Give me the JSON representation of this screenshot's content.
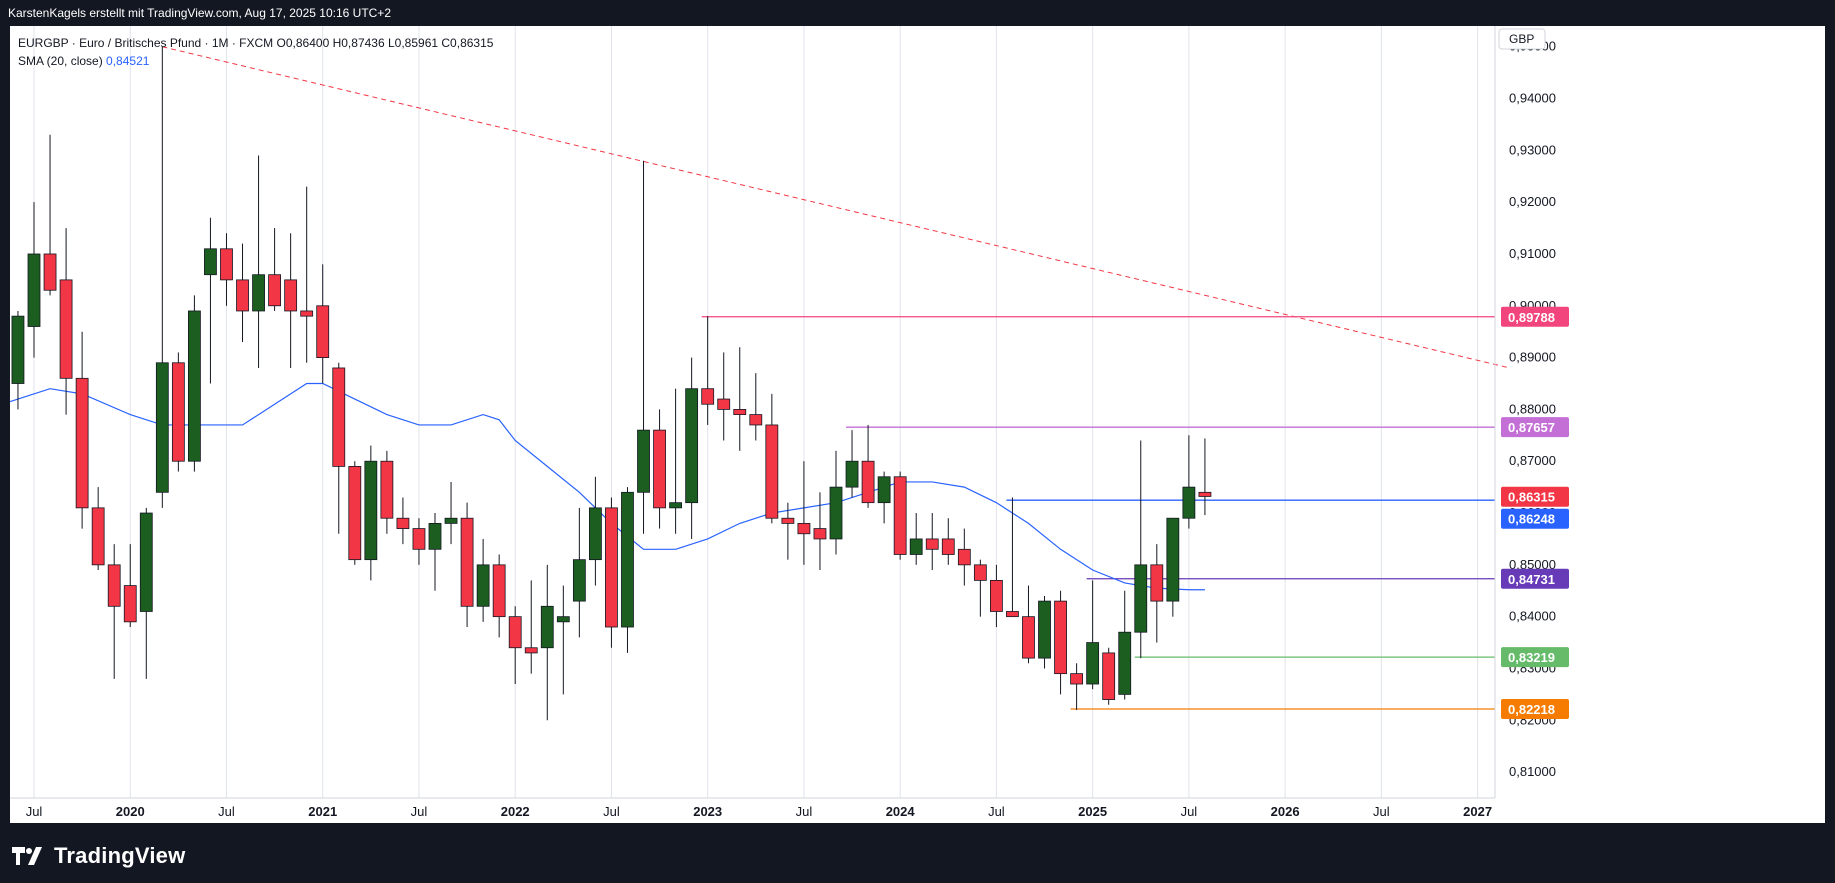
{
  "header": {
    "attribution": "KarstenKagels erstellt mit TradingView.com, Aug 17, 2025 10:16 UTC+2"
  },
  "legend": {
    "symbol_line": "EURGBP · Euro / Britisches Pfund · 1M · FXCM",
    "ohlc": {
      "o": "O0,86400",
      "h": "H0,87436",
      "l": "L0,85961",
      "c": "C0,86315"
    },
    "sma_label": "SMA (20, close)",
    "sma_value": "0,84521"
  },
  "footer": {
    "brand": "TradingView"
  },
  "colors": {
    "up": "#1b5e20",
    "down": "#f23645",
    "sma": "#2962ff",
    "trend": "#f23645",
    "grid": "#e0e3eb"
  },
  "chart_data": {
    "type": "candlestick",
    "currency": "GBP",
    "ylim": [
      0.805,
      0.954
    ],
    "y_ticks": [
      {
        "v": 0.95,
        "label": "0,95000"
      },
      {
        "v": 0.94,
        "label": "0,94000"
      },
      {
        "v": 0.93,
        "label": "0,93000"
      },
      {
        "v": 0.92,
        "label": "0,92000"
      },
      {
        "v": 0.91,
        "label": "0,91000"
      },
      {
        "v": 0.9,
        "label": "0,90000"
      },
      {
        "v": 0.89,
        "label": "0,89000"
      },
      {
        "v": 0.88,
        "label": "0,88000"
      },
      {
        "v": 0.87,
        "label": "0,87000"
      },
      {
        "v": 0.86,
        "label": "0,86000"
      },
      {
        "v": 0.85,
        "label": "0,85000"
      },
      {
        "v": 0.84,
        "label": "0,84000"
      },
      {
        "v": 0.83,
        "label": "0,83000"
      },
      {
        "v": 0.82,
        "label": "0,82000"
      },
      {
        "v": 0.81,
        "label": "0,81000"
      }
    ],
    "x_ticks": [
      {
        "m": "2019-07",
        "label": "Jul",
        "bold": false
      },
      {
        "m": "2020-01",
        "label": "2020",
        "bold": true
      },
      {
        "m": "2020-07",
        "label": "Jul",
        "bold": false
      },
      {
        "m": "2021-01",
        "label": "2021",
        "bold": true
      },
      {
        "m": "2021-07",
        "label": "Jul",
        "bold": false
      },
      {
        "m": "2022-01",
        "label": "2022",
        "bold": true
      },
      {
        "m": "2022-07",
        "label": "Jul",
        "bold": false
      },
      {
        "m": "2023-01",
        "label": "2023",
        "bold": true
      },
      {
        "m": "2023-07",
        "label": "Jul",
        "bold": false
      },
      {
        "m": "2024-01",
        "label": "2024",
        "bold": true
      },
      {
        "m": "2024-07",
        "label": "Jul",
        "bold": false
      },
      {
        "m": "2025-01",
        "label": "2025",
        "bold": true
      },
      {
        "m": "2025-07",
        "label": "Jul",
        "bold": false
      },
      {
        "m": "2026-01",
        "label": "2026",
        "bold": true
      },
      {
        "m": "2026-07",
        "label": "Jul",
        "bold": false
      },
      {
        "m": "2027-01",
        "label": "2027",
        "bold": true
      }
    ],
    "candles": [
      {
        "m": "2019-05",
        "o": 0.862,
        "h": 0.892,
        "l": 0.86,
        "c": 0.885
      },
      {
        "m": "2019-06",
        "o": 0.885,
        "h": 0.899,
        "l": 0.88,
        "c": 0.898
      },
      {
        "m": "2019-07",
        "o": 0.896,
        "h": 0.92,
        "l": 0.89,
        "c": 0.91
      },
      {
        "m": "2019-08",
        "o": 0.91,
        "h": 0.933,
        "l": 0.902,
        "c": 0.903
      },
      {
        "m": "2019-09",
        "o": 0.905,
        "h": 0.915,
        "l": 0.879,
        "c": 0.886
      },
      {
        "m": "2019-10",
        "o": 0.886,
        "h": 0.895,
        "l": 0.857,
        "c": 0.861
      },
      {
        "m": "2019-11",
        "o": 0.861,
        "h": 0.865,
        "l": 0.849,
        "c": 0.85
      },
      {
        "m": "2019-12",
        "o": 0.85,
        "h": 0.854,
        "l": 0.828,
        "c": 0.842
      },
      {
        "m": "2020-01",
        "o": 0.846,
        "h": 0.854,
        "l": 0.838,
        "c": 0.839
      },
      {
        "m": "2020-02",
        "o": 0.841,
        "h": 0.861,
        "l": 0.828,
        "c": 0.86
      },
      {
        "m": "2020-03",
        "o": 0.864,
        "h": 0.95,
        "l": 0.861,
        "c": 0.889
      },
      {
        "m": "2020-04",
        "o": 0.889,
        "h": 0.891,
        "l": 0.868,
        "c": 0.87
      },
      {
        "m": "2020-05",
        "o": 0.87,
        "h": 0.902,
        "l": 0.868,
        "c": 0.899
      },
      {
        "m": "2020-06",
        "o": 0.906,
        "h": 0.917,
        "l": 0.885,
        "c": 0.911
      },
      {
        "m": "2020-07",
        "o": 0.911,
        "h": 0.914,
        "l": 0.9,
        "c": 0.905
      },
      {
        "m": "2020-08",
        "o": 0.905,
        "h": 0.912,
        "l": 0.893,
        "c": 0.899
      },
      {
        "m": "2020-09",
        "o": 0.899,
        "h": 0.929,
        "l": 0.888,
        "c": 0.906
      },
      {
        "m": "2020-10",
        "o": 0.906,
        "h": 0.915,
        "l": 0.899,
        "c": 0.9
      },
      {
        "m": "2020-11",
        "o": 0.905,
        "h": 0.914,
        "l": 0.888,
        "c": 0.899
      },
      {
        "m": "2020-12",
        "o": 0.899,
        "h": 0.923,
        "l": 0.889,
        "c": 0.898
      },
      {
        "m": "2021-01",
        "o": 0.9,
        "h": 0.908,
        "l": 0.885,
        "c": 0.89
      },
      {
        "m": "2021-02",
        "o": 0.888,
        "h": 0.889,
        "l": 0.856,
        "c": 0.869
      },
      {
        "m": "2021-03",
        "o": 0.869,
        "h": 0.87,
        "l": 0.85,
        "c": 0.851
      },
      {
        "m": "2021-04",
        "o": 0.851,
        "h": 0.873,
        "l": 0.847,
        "c": 0.87
      },
      {
        "m": "2021-05",
        "o": 0.87,
        "h": 0.872,
        "l": 0.856,
        "c": 0.859
      },
      {
        "m": "2021-06",
        "o": 0.859,
        "h": 0.863,
        "l": 0.854,
        "c": 0.857
      },
      {
        "m": "2021-07",
        "o": 0.857,
        "h": 0.859,
        "l": 0.85,
        "c": 0.853
      },
      {
        "m": "2021-08",
        "o": 0.853,
        "h": 0.86,
        "l": 0.845,
        "c": 0.858
      },
      {
        "m": "2021-09",
        "o": 0.858,
        "h": 0.866,
        "l": 0.854,
        "c": 0.859
      },
      {
        "m": "2021-10",
        "o": 0.859,
        "h": 0.862,
        "l": 0.838,
        "c": 0.842
      },
      {
        "m": "2021-11",
        "o": 0.842,
        "h": 0.855,
        "l": 0.839,
        "c": 0.85
      },
      {
        "m": "2021-12",
        "o": 0.85,
        "h": 0.852,
        "l": 0.836,
        "c": 0.84
      },
      {
        "m": "2022-01",
        "o": 0.84,
        "h": 0.842,
        "l": 0.827,
        "c": 0.834
      },
      {
        "m": "2022-02",
        "o": 0.834,
        "h": 0.847,
        "l": 0.829,
        "c": 0.833
      },
      {
        "m": "2022-03",
        "o": 0.834,
        "h": 0.85,
        "l": 0.82,
        "c": 0.842
      },
      {
        "m": "2022-04",
        "o": 0.839,
        "h": 0.846,
        "l": 0.825,
        "c": 0.84
      },
      {
        "m": "2022-05",
        "o": 0.843,
        "h": 0.861,
        "l": 0.836,
        "c": 0.851
      },
      {
        "m": "2022-06",
        "o": 0.851,
        "h": 0.867,
        "l": 0.846,
        "c": 0.861
      },
      {
        "m": "2022-07",
        "o": 0.861,
        "h": 0.863,
        "l": 0.834,
        "c": 0.838
      },
      {
        "m": "2022-08",
        "o": 0.838,
        "h": 0.865,
        "l": 0.833,
        "c": 0.864
      },
      {
        "m": "2022-09",
        "o": 0.864,
        "h": 0.928,
        "l": 0.856,
        "c": 0.876
      },
      {
        "m": "2022-10",
        "o": 0.876,
        "h": 0.88,
        "l": 0.857,
        "c": 0.861
      },
      {
        "m": "2022-11",
        "o": 0.861,
        "h": 0.884,
        "l": 0.856,
        "c": 0.862
      },
      {
        "m": "2022-12",
        "o": 0.862,
        "h": 0.89,
        "l": 0.855,
        "c": 0.884
      },
      {
        "m": "2023-01",
        "o": 0.884,
        "h": 0.898,
        "l": 0.877,
        "c": 0.881
      },
      {
        "m": "2023-02",
        "o": 0.882,
        "h": 0.891,
        "l": 0.874,
        "c": 0.88
      },
      {
        "m": "2023-03",
        "o": 0.88,
        "h": 0.892,
        "l": 0.872,
        "c": 0.879
      },
      {
        "m": "2023-04",
        "o": 0.879,
        "h": 0.887,
        "l": 0.874,
        "c": 0.877
      },
      {
        "m": "2023-05",
        "o": 0.877,
        "h": 0.883,
        "l": 0.858,
        "c": 0.859
      },
      {
        "m": "2023-06",
        "o": 0.859,
        "h": 0.862,
        "l": 0.851,
        "c": 0.858
      },
      {
        "m": "2023-07",
        "o": 0.858,
        "h": 0.87,
        "l": 0.85,
        "c": 0.856
      },
      {
        "m": "2023-08",
        "o": 0.857,
        "h": 0.864,
        "l": 0.849,
        "c": 0.855
      },
      {
        "m": "2023-09",
        "o": 0.855,
        "h": 0.872,
        "l": 0.852,
        "c": 0.865
      },
      {
        "m": "2023-10",
        "o": 0.865,
        "h": 0.876,
        "l": 0.863,
        "c": 0.87
      },
      {
        "m": "2023-11",
        "o": 0.87,
        "h": 0.877,
        "l": 0.861,
        "c": 0.862
      },
      {
        "m": "2023-12",
        "o": 0.862,
        "h": 0.868,
        "l": 0.858,
        "c": 0.867
      },
      {
        "m": "2024-01",
        "o": 0.867,
        "h": 0.868,
        "l": 0.851,
        "c": 0.852
      },
      {
        "m": "2024-02",
        "o": 0.852,
        "h": 0.86,
        "l": 0.85,
        "c": 0.855
      },
      {
        "m": "2024-03",
        "o": 0.855,
        "h": 0.86,
        "l": 0.849,
        "c": 0.853
      },
      {
        "m": "2024-04",
        "o": 0.855,
        "h": 0.859,
        "l": 0.85,
        "c": 0.852
      },
      {
        "m": "2024-05",
        "o": 0.853,
        "h": 0.857,
        "l": 0.846,
        "c": 0.85
      },
      {
        "m": "2024-06",
        "o": 0.85,
        "h": 0.851,
        "l": 0.84,
        "c": 0.847
      },
      {
        "m": "2024-07",
        "o": 0.847,
        "h": 0.85,
        "l": 0.838,
        "c": 0.841
      },
      {
        "m": "2024-08",
        "o": 0.841,
        "h": 0.863,
        "l": 0.84,
        "c": 0.84
      },
      {
        "m": "2024-09",
        "o": 0.84,
        "h": 0.846,
        "l": 0.831,
        "c": 0.832
      },
      {
        "m": "2024-10",
        "o": 0.832,
        "h": 0.844,
        "l": 0.83,
        "c": 0.843
      },
      {
        "m": "2024-11",
        "o": 0.843,
        "h": 0.845,
        "l": 0.825,
        "c": 0.829
      },
      {
        "m": "2024-12",
        "o": 0.829,
        "h": 0.831,
        "l": 0.822,
        "c": 0.827
      },
      {
        "m": "2025-01",
        "o": 0.827,
        "h": 0.847,
        "l": 0.826,
        "c": 0.835
      },
      {
        "m": "2025-02",
        "o": 0.833,
        "h": 0.834,
        "l": 0.823,
        "c": 0.824
      },
      {
        "m": "2025-03",
        "o": 0.825,
        "h": 0.845,
        "l": 0.824,
        "c": 0.837
      },
      {
        "m": "2025-04",
        "o": 0.837,
        "h": 0.874,
        "l": 0.832,
        "c": 0.85
      },
      {
        "m": "2025-05",
        "o": 0.85,
        "h": 0.854,
        "l": 0.835,
        "c": 0.843
      },
      {
        "m": "2025-06",
        "o": 0.843,
        "h": 0.859,
        "l": 0.84,
        "c": 0.859
      },
      {
        "m": "2025-07",
        "o": 0.859,
        "h": 0.875,
        "l": 0.857,
        "c": 0.865
      },
      {
        "m": "2025-08",
        "o": 0.864,
        "h": 0.8744,
        "l": 0.8596,
        "c": 0.8632
      }
    ],
    "sma": {
      "name": "SMA (20, close)",
      "points": [
        {
          "m": "2019-05",
          "v": 0.881
        },
        {
          "m": "2019-08",
          "v": 0.884
        },
        {
          "m": "2019-10",
          "v": 0.883
        },
        {
          "m": "2020-01",
          "v": 0.879
        },
        {
          "m": "2020-03",
          "v": 0.877
        },
        {
          "m": "2020-06",
          "v": 0.877
        },
        {
          "m": "2020-08",
          "v": 0.877
        },
        {
          "m": "2020-10",
          "v": 0.881
        },
        {
          "m": "2020-12",
          "v": 0.885
        },
        {
          "m": "2021-01",
          "v": 0.885
        },
        {
          "m": "2021-03",
          "v": 0.882
        },
        {
          "m": "2021-05",
          "v": 0.879
        },
        {
          "m": "2021-07",
          "v": 0.877
        },
        {
          "m": "2021-09",
          "v": 0.877
        },
        {
          "m": "2021-11",
          "v": 0.879
        },
        {
          "m": "2021-12",
          "v": 0.878
        },
        {
          "m": "2022-01",
          "v": 0.874
        },
        {
          "m": "2022-03",
          "v": 0.869
        },
        {
          "m": "2022-05",
          "v": 0.864
        },
        {
          "m": "2022-07",
          "v": 0.858
        },
        {
          "m": "2022-09",
          "v": 0.853
        },
        {
          "m": "2022-11",
          "v": 0.853
        },
        {
          "m": "2023-01",
          "v": 0.855
        },
        {
          "m": "2023-03",
          "v": 0.858
        },
        {
          "m": "2023-05",
          "v": 0.86
        },
        {
          "m": "2023-07",
          "v": 0.861
        },
        {
          "m": "2023-09",
          "v": 0.862
        },
        {
          "m": "2023-11",
          "v": 0.864
        },
        {
          "m": "2024-01",
          "v": 0.866
        },
        {
          "m": "2024-03",
          "v": 0.866
        },
        {
          "m": "2024-05",
          "v": 0.865
        },
        {
          "m": "2024-07",
          "v": 0.862
        },
        {
          "m": "2024-09",
          "v": 0.858
        },
        {
          "m": "2024-11",
          "v": 0.853
        },
        {
          "m": "2025-01",
          "v": 0.849
        },
        {
          "m": "2025-03",
          "v": 0.8465
        },
        {
          "m": "2025-05",
          "v": 0.8455
        },
        {
          "m": "2025-07",
          "v": 0.8452
        },
        {
          "m": "2025-08",
          "v": 0.8452
        }
      ]
    },
    "trendline": {
      "from": {
        "m": "2020-03",
        "v": 0.95
      },
      "to": {
        "m": "2027-03",
        "v": 0.888
      }
    },
    "levels": [
      {
        "from": "2023-01",
        "v": 0.89788,
        "label": "0,89788",
        "color": "#f2457d"
      },
      {
        "from": "2023-10",
        "v": 0.87657,
        "label": "0,87657",
        "color": "#c36fd6"
      },
      {
        "from": "2024-08",
        "v": 0.86248,
        "label": "0,86248",
        "color": "#2962ff"
      },
      {
        "from": "2025-01",
        "v": 0.84731,
        "label": "0,84731",
        "color": "#673ab7"
      },
      {
        "from": "2025-04",
        "v": 0.83219,
        "label": "0,83219",
        "color": "#66bb6a"
      },
      {
        "from": "2024-12",
        "v": 0.82218,
        "label": "0,82218",
        "color": "#f57c00"
      }
    ],
    "last_price": {
      "v": 0.86315,
      "label": "0,86315",
      "color": "#f23645"
    }
  }
}
